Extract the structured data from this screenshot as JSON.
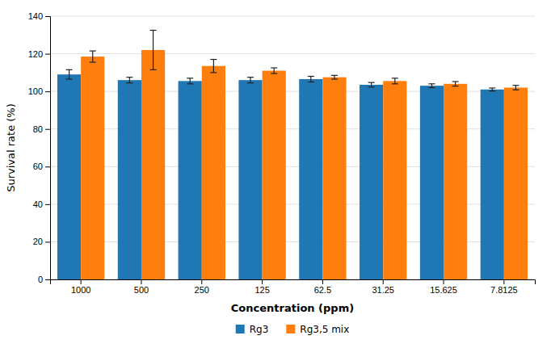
{
  "chart_data": {
    "type": "bar",
    "xlabel": "Concentration (ppm)",
    "ylabel": "Survival rate (%)",
    "categories": [
      "1000",
      "500",
      "250",
      "125",
      "62.5",
      "31.25",
      "15.625",
      "7.8125"
    ],
    "series": [
      {
        "name": "Rg3",
        "values": [
          109.0,
          106.0,
          105.5,
          106.0,
          106.5,
          103.5,
          103.0,
          101.0
        ],
        "errors": [
          2.5,
          1.5,
          1.5,
          1.5,
          1.5,
          1.2,
          1.0,
          0.8
        ]
      },
      {
        "name": "Rg3,5 mix",
        "values": [
          118.5,
          122.0,
          113.5,
          111.0,
          107.5,
          105.5,
          104.0,
          102.0
        ],
        "errors": [
          3.0,
          10.5,
          3.5,
          1.5,
          1.0,
          1.5,
          1.2,
          1.2
        ]
      }
    ],
    "ylim": [
      0,
      140
    ],
    "yticks": [
      0,
      20,
      40,
      60,
      80,
      100,
      120,
      140
    ],
    "grid": true,
    "legend": "bottom"
  }
}
